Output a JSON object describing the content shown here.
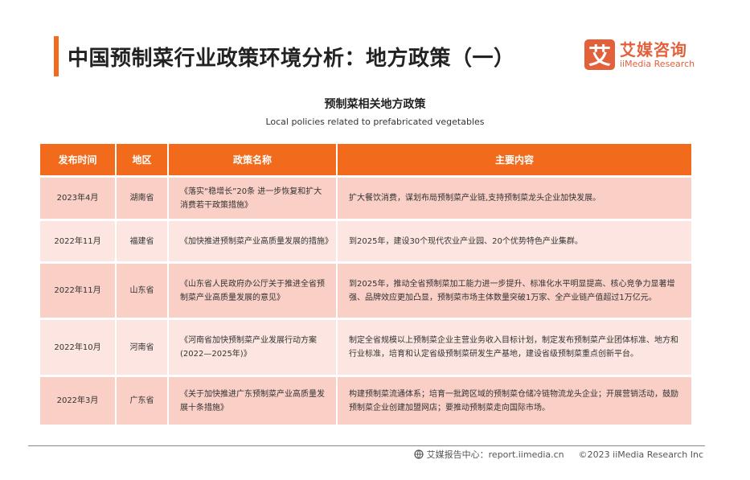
{
  "header": {
    "title": "中国预制菜行业政策环境分析：地方政策（一）",
    "logo_mark": "艾",
    "logo_cn": "艾媒咨询",
    "logo_en": "iiMedia Research"
  },
  "subtitle_cn": "预制菜相关地方政策",
  "subtitle_en": "Local policies related to prefabricated vegetables",
  "table": {
    "columns": [
      "发布时间",
      "地区",
      "政策名称",
      "主要内容"
    ],
    "rows": [
      [
        "2023年4月",
        "湖南省",
        "《落实“稳增长”20条 进一步恢复和扩大消费若干政策措施》",
        "扩大餐饮消费，谋划布局预制菜产业链,支持预制菜龙头企业加快发展。"
      ],
      [
        "2022年11月",
        "福建省",
        "《加快推进预制菜产业高质量发展的措施》",
        "到2025年，建设30个现代农业产业园、20个优势特色产业集群。"
      ],
      [
        "2022年11月",
        "山东省",
        "《山东省人民政府办公厅关于推进全省预制菜产业高质量发展的意见》",
        "到2025年，推动全省预制菜加工能力进一步提升、标准化水平明显提高、核心竞争力显著增强、品牌效应更加凸显，预制菜市场主体数量突破1万家、全产业链产值超过1万亿元。"
      ],
      [
        "2022年10月",
        "河南省",
        "《河南省加快预制菜产业发展行动方案(2022—2025年)》",
        "制定全省规模以上预制菜企业主营业务收入目标计划，制定发布预制菜产业团体标准、地方和行业标准，培育和认定省级预制菜研发生产基地，建设省级预制菜重点创新平台。"
      ],
      [
        "2022年3月",
        "广东省",
        "《关于加快推进广东预制菜产业高质量发展十条措施》",
        "构建预制菜流通体系；培育一批跨区域的预制菜仓储冷链物流龙头企业；开展营销活动，鼓励预制菜企业创建加盟网店；要推动预制菜走向国际市场。"
      ]
    ]
  },
  "footer": {
    "icon": "globe-icon",
    "source": "艾媒报告中心：report.iimedia.cn",
    "copyright": "©2023  iiMedia Research  Inc"
  },
  "colors": {
    "accent": "#f26b1d",
    "row_odd": "#f9cfc6",
    "row_even": "#fde6e1",
    "logo": "#e2603a"
  }
}
